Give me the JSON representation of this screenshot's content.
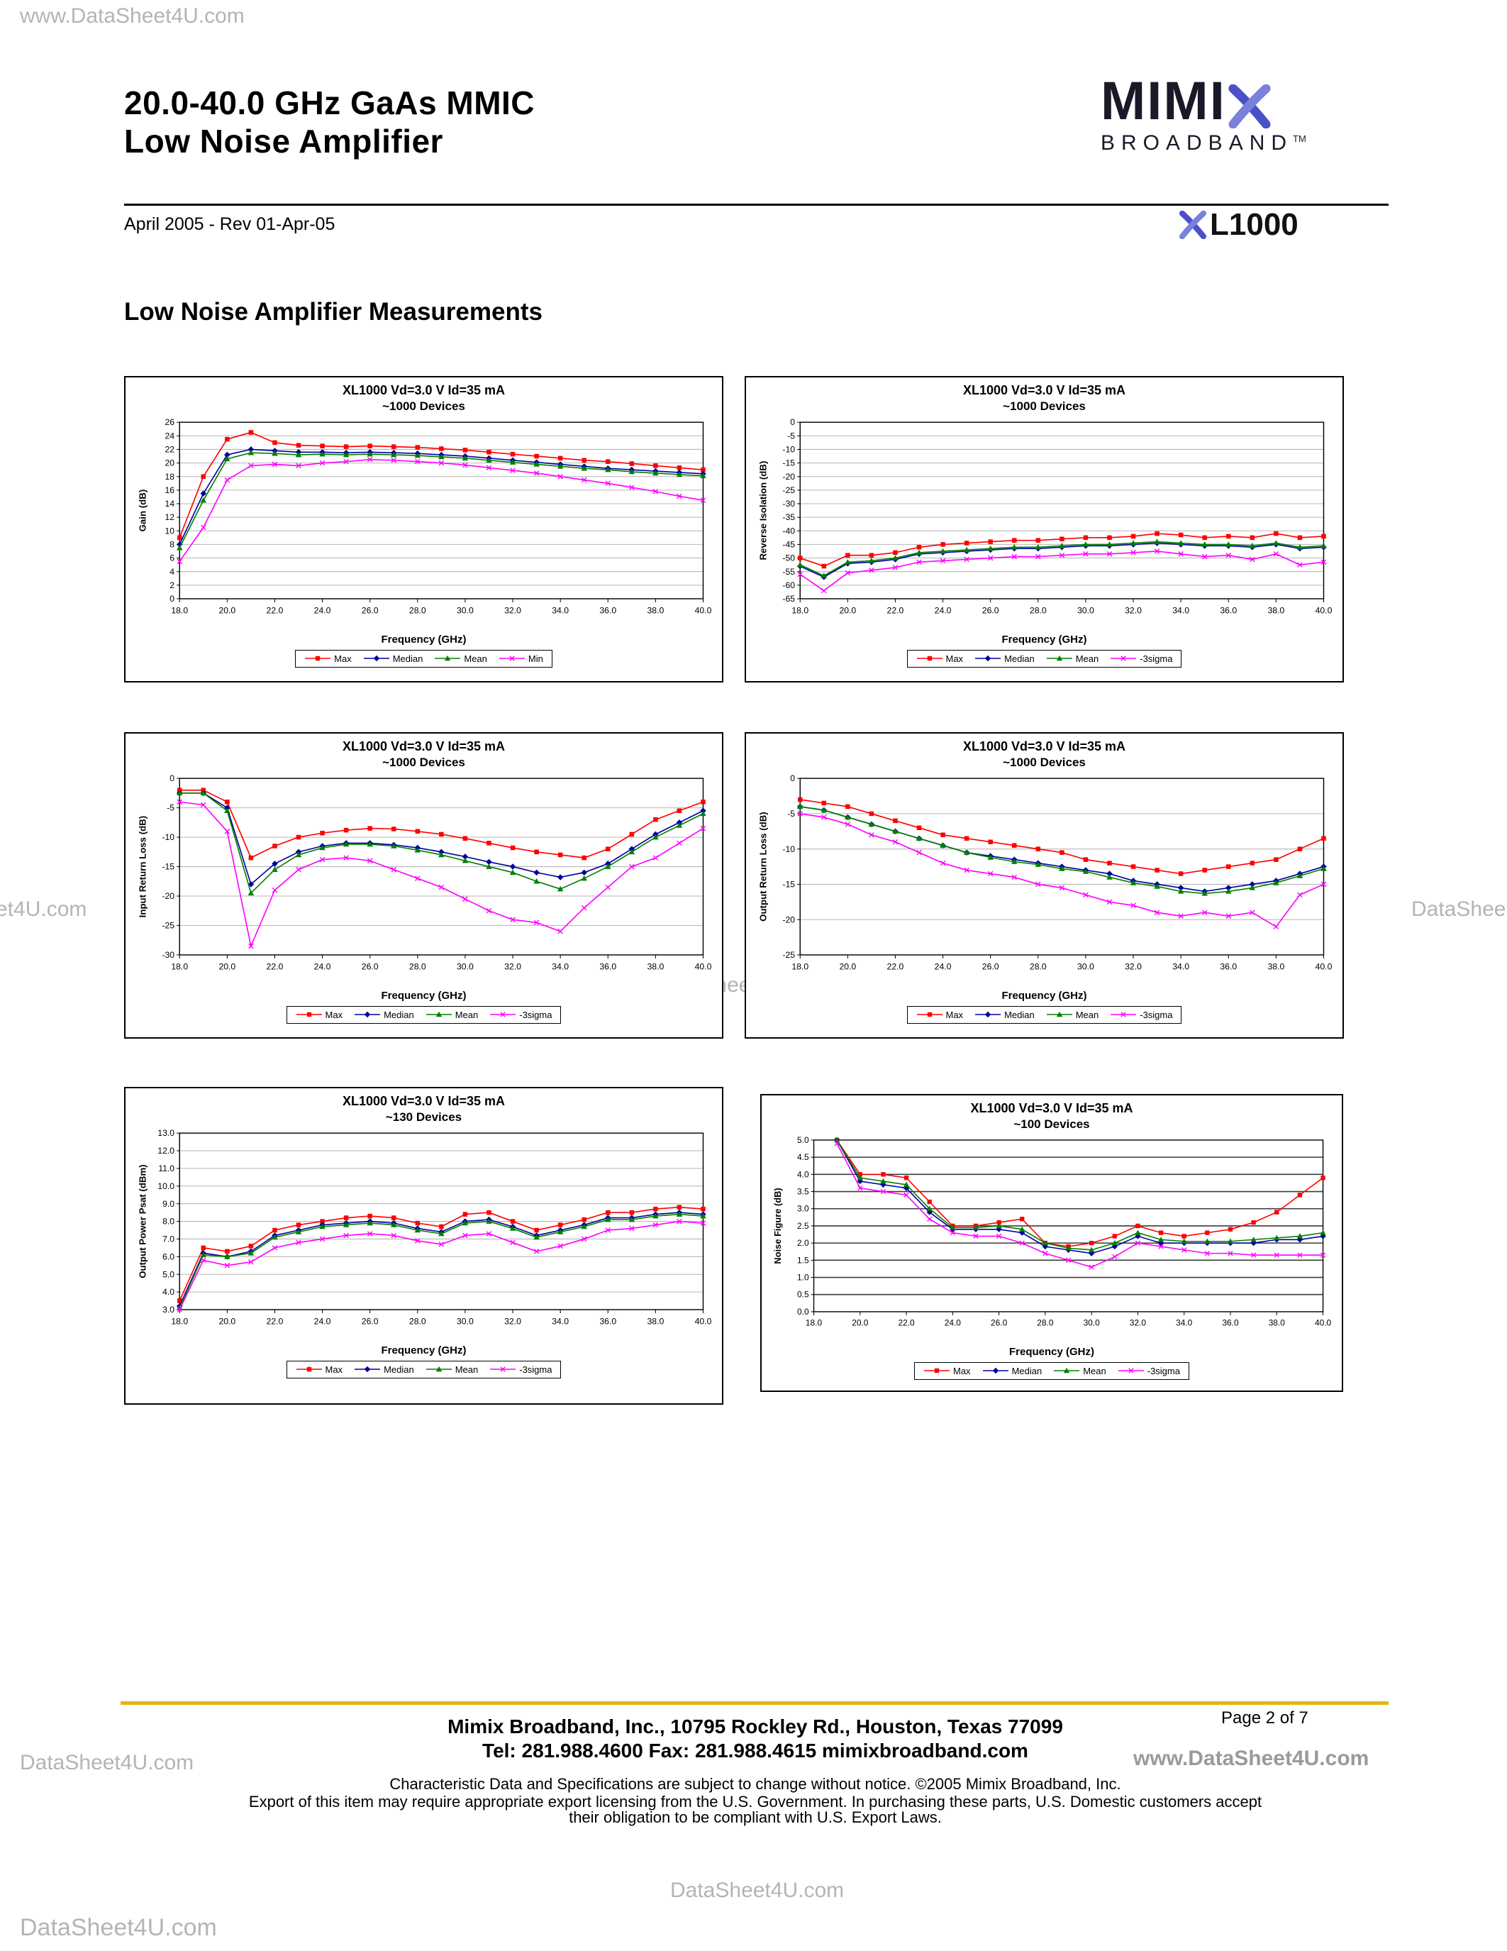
{
  "header": {
    "title_line1": "20.0-40.0 GHz GaAs MMIC",
    "title_line2": "Low Noise Amplifier",
    "revision": "April 2005 - Rev 01-Apr-05",
    "brand": {
      "name": "MIMI",
      "subtitle": "BROADBAND",
      "tm": "TM",
      "part": "L1000"
    }
  },
  "section_title": "Low Noise Amplifier Measurements",
  "watermarks": {
    "top_left": "www.DataSheet4U.com",
    "left_edge": "et4U.com",
    "right_edge": "DataShee",
    "center": "DataSheet4U.com",
    "footer_left": "DataSheet4U.com",
    "footer_right": "www.DataSheet4U.com",
    "bottom_center": "DataSheet4U.com",
    "bottom_left": "DataSheet4U.com"
  },
  "footer": {
    "address": "Mimix Broadband, Inc., 10795 Rockley Rd., Houston, Texas 77099",
    "contact": "Tel: 281.988.4600  Fax: 281.988.4615  mimixbroadband.com",
    "page": "Page 2 of 7",
    "notice1": "Characteristic Data and Specifications are subject to change without notice. ©2005 Mimix Broadband, Inc.",
    "notice2": "Export of this item may require appropriate export licensing from the U.S. Government. In purchasing these parts, U.S. Domestic customers accept",
    "notice3": "their obligation to be compliant with U.S. Export Laws."
  },
  "chart_data": [
    {
      "type": "line",
      "title": "XL1000 Vd=3.0 V Id=35 mA",
      "subtitle": "~1000 Devices",
      "xlabel": "Frequency (GHz)",
      "ylabel": "Gain (dB)",
      "xlim": [
        18,
        40
      ],
      "xtick_step": 2,
      "xtick_decimals": 1,
      "ylim": [
        0,
        26
      ],
      "ytick_step": 2,
      "ytick_decimals": 0,
      "x": [
        18,
        19,
        20,
        21,
        22,
        23,
        24,
        25,
        26,
        27,
        28,
        29,
        30,
        31,
        32,
        33,
        34,
        35,
        36,
        37,
        38,
        39,
        40
      ],
      "series": [
        {
          "name": "Max",
          "color": "#ff0000",
          "marker": "square",
          "values": [
            9.0,
            18.0,
            23.5,
            24.5,
            23.0,
            22.6,
            22.5,
            22.4,
            22.5,
            22.4,
            22.3,
            22.1,
            21.9,
            21.6,
            21.3,
            21.0,
            20.7,
            20.4,
            20.2,
            19.9,
            19.6,
            19.3,
            19.0
          ]
        },
        {
          "name": "Median",
          "color": "#0000a0",
          "marker": "diamond",
          "values": [
            8.0,
            15.5,
            21.2,
            22.0,
            21.8,
            21.6,
            21.6,
            21.5,
            21.6,
            21.5,
            21.4,
            21.2,
            21.0,
            20.7,
            20.4,
            20.1,
            19.8,
            19.5,
            19.2,
            19.0,
            18.8,
            18.6,
            18.4
          ]
        },
        {
          "name": "Mean",
          "color": "#008000",
          "marker": "triangle",
          "values": [
            7.5,
            14.5,
            20.6,
            21.5,
            21.4,
            21.2,
            21.3,
            21.2,
            21.3,
            21.2,
            21.1,
            20.9,
            20.7,
            20.4,
            20.1,
            19.8,
            19.5,
            19.2,
            19.0,
            18.7,
            18.5,
            18.3,
            18.1
          ]
        },
        {
          "name": "Min",
          "color": "#ff00ff",
          "marker": "x",
          "values": [
            5.5,
            10.5,
            17.5,
            19.6,
            19.8,
            19.6,
            20.0,
            20.2,
            20.5,
            20.4,
            20.2,
            20.0,
            19.7,
            19.3,
            18.9,
            18.5,
            18.0,
            17.5,
            17.0,
            16.4,
            15.8,
            15.1,
            14.5
          ]
        }
      ]
    },
    {
      "type": "line",
      "title": "XL1000 Vd=3.0 V Id=35 mA",
      "subtitle": "~1000 Devices",
      "xlabel": "Frequency (GHz)",
      "ylabel": "Reverse Isolation (dB)",
      "xlim": [
        18,
        40
      ],
      "xtick_step": 2,
      "xtick_decimals": 1,
      "ylim": [
        -65,
        0
      ],
      "ytick_step": 5,
      "ytick_decimals": 0,
      "x": [
        18,
        19,
        20,
        21,
        22,
        23,
        24,
        25,
        26,
        27,
        28,
        29,
        30,
        31,
        32,
        33,
        34,
        35,
        36,
        37,
        38,
        39,
        40
      ],
      "series": [
        {
          "name": "Max",
          "color": "#ff0000",
          "marker": "square",
          "values": [
            -50,
            -53,
            -49,
            -49,
            -48,
            -46,
            -45,
            -44.5,
            -44,
            -43.5,
            -43.5,
            -43,
            -42.5,
            -42.5,
            -42,
            -41,
            -41.5,
            -42.5,
            -42,
            -42.5,
            -41,
            -42.5,
            -42
          ]
        },
        {
          "name": "Median",
          "color": "#0000a0",
          "marker": "diamond",
          "values": [
            -53,
            -57,
            -52,
            -51.5,
            -50.5,
            -48.5,
            -48,
            -47.5,
            -47,
            -46.5,
            -46.5,
            -46,
            -45.5,
            -45.5,
            -45,
            -44.5,
            -45,
            -45.5,
            -45.5,
            -46,
            -45,
            -46.5,
            -46
          ]
        },
        {
          "name": "Mean",
          "color": "#008000",
          "marker": "triangle",
          "values": [
            -52.5,
            -56.5,
            -51.5,
            -51,
            -50,
            -48,
            -47.5,
            -47,
            -46.5,
            -46,
            -46,
            -45.5,
            -45,
            -45,
            -44.5,
            -44,
            -44.5,
            -45,
            -45,
            -45.5,
            -44.5,
            -46,
            -45.5
          ]
        },
        {
          "name": "-3sigma",
          "color": "#ff00ff",
          "marker": "x",
          "values": [
            -56,
            -62,
            -55.5,
            -54.5,
            -53.5,
            -51.5,
            -51,
            -50.5,
            -50,
            -49.5,
            -49.5,
            -49,
            -48.5,
            -48.5,
            -48,
            -47.5,
            -48.5,
            -49.5,
            -49,
            -50.5,
            -48.5,
            -52.5,
            -51.5
          ]
        }
      ]
    },
    {
      "type": "line",
      "title": "XL1000 Vd=3.0 V Id=35 mA",
      "subtitle": "~1000 Devices",
      "xlabel": "Frequency (GHz)",
      "ylabel": "Input Return Loss (dB)",
      "xlim": [
        18,
        40
      ],
      "xtick_step": 2,
      "xtick_decimals": 1,
      "ylim": [
        -30,
        0
      ],
      "ytick_step": 5,
      "ytick_decimals": 0,
      "x": [
        18,
        19,
        20,
        21,
        22,
        23,
        24,
        25,
        26,
        27,
        28,
        29,
        30,
        31,
        32,
        33,
        34,
        35,
        36,
        37,
        38,
        39,
        40
      ],
      "series": [
        {
          "name": "Max",
          "color": "#ff0000",
          "marker": "square",
          "values": [
            -2,
            -2,
            -4,
            -13.5,
            -11.5,
            -10,
            -9.3,
            -8.8,
            -8.5,
            -8.6,
            -9,
            -9.5,
            -10.2,
            -11,
            -11.8,
            -12.5,
            -13,
            -13.5,
            -12,
            -9.5,
            -7,
            -5.5,
            -4
          ]
        },
        {
          "name": "Median",
          "color": "#0000a0",
          "marker": "diamond",
          "values": [
            -2.5,
            -2.5,
            -5,
            -18,
            -14.5,
            -12.5,
            -11.5,
            -11,
            -11,
            -11.3,
            -11.8,
            -12.5,
            -13.3,
            -14.2,
            -15,
            -16,
            -16.8,
            -16,
            -14.5,
            -12,
            -9.5,
            -7.5,
            -5.5
          ]
        },
        {
          "name": "Mean",
          "color": "#008000",
          "marker": "triangle",
          "values": [
            -2.5,
            -2.5,
            -5.5,
            -19.5,
            -15.5,
            -13,
            -11.8,
            -11.2,
            -11.2,
            -11.5,
            -12.2,
            -13,
            -14,
            -15,
            -16,
            -17.5,
            -18.8,
            -17,
            -15,
            -12.5,
            -10,
            -8,
            -6
          ]
        },
        {
          "name": "-3sigma",
          "color": "#ff00ff",
          "marker": "x",
          "values": [
            -4,
            -4.5,
            -9,
            -28.5,
            -19,
            -15.5,
            -13.8,
            -13.5,
            -14,
            -15.5,
            -17,
            -18.5,
            -20.5,
            -22.5,
            -24,
            -24.5,
            -26,
            -22,
            -18.5,
            -15,
            -13.5,
            -11,
            -8.5
          ]
        }
      ]
    },
    {
      "type": "line",
      "title": "XL1000 Vd=3.0 V Id=35 mA",
      "subtitle": "~1000 Devices",
      "xlabel": "Frequency (GHz)",
      "ylabel": "Output Return Loss (dB)",
      "xlim": [
        18,
        40
      ],
      "xtick_step": 2,
      "xtick_decimals": 1,
      "ylim": [
        -25,
        0
      ],
      "ytick_step": 5,
      "ytick_decimals": 0,
      "x": [
        18,
        19,
        20,
        21,
        22,
        23,
        24,
        25,
        26,
        27,
        28,
        29,
        30,
        31,
        32,
        33,
        34,
        35,
        36,
        37,
        38,
        39,
        40
      ],
      "series": [
        {
          "name": "Max",
          "color": "#ff0000",
          "marker": "square",
          "values": [
            -3,
            -3.5,
            -4,
            -5,
            -6,
            -7,
            -8,
            -8.5,
            -9,
            -9.5,
            -10,
            -10.5,
            -11.5,
            -12,
            -12.5,
            -13,
            -13.5,
            -13,
            -12.5,
            -12,
            -11.5,
            -10,
            -8.5
          ]
        },
        {
          "name": "Median",
          "color": "#0000a0",
          "marker": "diamond",
          "values": [
            -4,
            -4.5,
            -5.5,
            -6.5,
            -7.5,
            -8.5,
            -9.5,
            -10.5,
            -11,
            -11.5,
            -12,
            -12.5,
            -13,
            -13.5,
            -14.5,
            -15,
            -15.5,
            -16,
            -15.5,
            -15,
            -14.5,
            -13.5,
            -12.5
          ]
        },
        {
          "name": "Mean",
          "color": "#008000",
          "marker": "triangle",
          "values": [
            -4,
            -4.5,
            -5.5,
            -6.5,
            -7.5,
            -8.5,
            -9.5,
            -10.5,
            -11.2,
            -11.8,
            -12.2,
            -12.8,
            -13.2,
            -14,
            -14.8,
            -15.3,
            -16,
            -16.3,
            -16,
            -15.5,
            -14.8,
            -13.8,
            -12.8
          ]
        },
        {
          "name": "-3sigma",
          "color": "#ff00ff",
          "marker": "x",
          "values": [
            -5,
            -5.5,
            -6.5,
            -8,
            -9,
            -10.5,
            -12,
            -13,
            -13.5,
            -14,
            -15,
            -15.5,
            -16.5,
            -17.5,
            -18,
            -19,
            -19.5,
            -19,
            -19.5,
            -19,
            -21,
            -16.5,
            -15
          ]
        }
      ]
    },
    {
      "type": "line",
      "title": "XL1000 Vd=3.0 V Id=35 mA",
      "subtitle": "~130 Devices",
      "xlabel": "Frequency (GHz)",
      "ylabel": "Output Power Psat (dBm)",
      "xlim": [
        18,
        40
      ],
      "xtick_step": 2,
      "xtick_decimals": 1,
      "ylim": [
        3,
        13
      ],
      "ytick_step": 1,
      "ytick_decimals": 1,
      "x": [
        18,
        19,
        20,
        21,
        22,
        23,
        24,
        25,
        26,
        27,
        28,
        29,
        30,
        31,
        32,
        33,
        34,
        35,
        36,
        37,
        38,
        39,
        40
      ],
      "series": [
        {
          "name": "Max",
          "color": "#ff0000",
          "marker": "square",
          "values": [
            3.5,
            6.5,
            6.3,
            6.6,
            7.5,
            7.8,
            8.0,
            8.2,
            8.3,
            8.2,
            7.9,
            7.7,
            8.4,
            8.5,
            8.0,
            7.5,
            7.8,
            8.1,
            8.5,
            8.5,
            8.7,
            8.8,
            8.7
          ]
        },
        {
          "name": "Median",
          "color": "#0000a0",
          "marker": "diamond",
          "values": [
            3.2,
            6.2,
            6.0,
            6.3,
            7.2,
            7.5,
            7.8,
            7.9,
            8.0,
            7.9,
            7.6,
            7.4,
            8.0,
            8.1,
            7.7,
            7.2,
            7.5,
            7.8,
            8.2,
            8.2,
            8.4,
            8.5,
            8.4
          ]
        },
        {
          "name": "Mean",
          "color": "#008000",
          "marker": "triangle",
          "values": [
            3.1,
            6.1,
            6.0,
            6.2,
            7.1,
            7.4,
            7.7,
            7.8,
            7.9,
            7.8,
            7.5,
            7.3,
            7.9,
            8.0,
            7.6,
            7.1,
            7.4,
            7.7,
            8.1,
            8.1,
            8.3,
            8.4,
            8.3
          ]
        },
        {
          "name": "-3sigma",
          "color": "#ff00ff",
          "marker": "x",
          "values": [
            3.0,
            5.8,
            5.5,
            5.7,
            6.5,
            6.8,
            7.0,
            7.2,
            7.3,
            7.2,
            6.9,
            6.7,
            7.2,
            7.3,
            6.8,
            6.3,
            6.6,
            7.0,
            7.5,
            7.6,
            7.8,
            8.0,
            7.9
          ]
        }
      ]
    },
    {
      "type": "line",
      "title": "XL1000 Vd=3.0 V Id=35 mA",
      "subtitle": "~100 Devices",
      "xlabel": "Frequency (GHz)",
      "ylabel": "Noise Figure (dB)",
      "grid_color": "#3a3a3a",
      "grid_width": 1.6,
      "xlim": [
        18,
        40
      ],
      "xtick_step": 2,
      "xtick_decimals": 1,
      "ylim": [
        0,
        5
      ],
      "ytick_step": 0.5,
      "ytick_decimals": 1,
      "x": [
        19,
        20,
        21,
        22,
        23,
        24,
        25,
        26,
        27,
        28,
        29,
        30,
        31,
        32,
        33,
        34,
        35,
        36,
        37,
        38,
        39,
        40
      ],
      "series": [
        {
          "name": "Max",
          "color": "#ff0000",
          "marker": "square",
          "values": [
            5.2,
            4.0,
            4.0,
            3.9,
            3.2,
            2.5,
            2.5,
            2.6,
            2.7,
            2.0,
            1.9,
            2.0,
            2.2,
            2.5,
            2.3,
            2.2,
            2.3,
            2.4,
            2.6,
            2.9,
            3.4,
            3.9
          ]
        },
        {
          "name": "Median",
          "color": "#0000a0",
          "marker": "diamond",
          "values": [
            5.0,
            3.8,
            3.7,
            3.6,
            2.9,
            2.4,
            2.4,
            2.4,
            2.3,
            1.9,
            1.8,
            1.7,
            1.9,
            2.2,
            2.0,
            2.0,
            2.0,
            2.0,
            2.0,
            2.1,
            2.1,
            2.2
          ]
        },
        {
          "name": "Mean",
          "color": "#008000",
          "marker": "triangle",
          "values": [
            5.1,
            3.9,
            3.8,
            3.7,
            3.0,
            2.45,
            2.45,
            2.5,
            2.4,
            2.0,
            1.85,
            1.8,
            2.0,
            2.3,
            2.1,
            2.05,
            2.05,
            2.05,
            2.1,
            2.15,
            2.2,
            2.3
          ]
        },
        {
          "name": "-3sigma",
          "color": "#ff00ff",
          "marker": "x",
          "values": [
            4.9,
            3.6,
            3.5,
            3.4,
            2.7,
            2.3,
            2.2,
            2.2,
            2.0,
            1.7,
            1.5,
            1.3,
            1.6,
            2.0,
            1.9,
            1.8,
            1.7,
            1.7,
            1.65,
            1.65,
            1.65,
            1.65
          ]
        }
      ]
    }
  ]
}
